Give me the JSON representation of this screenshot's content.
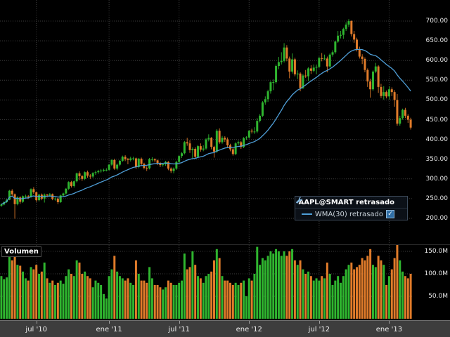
{
  "window": {
    "background": "#000000"
  },
  "legend": {
    "symbol_label": "AAPL@SMART retrasado",
    "wma_label": "WMA(30) retrasado",
    "wma_checked": true
  },
  "volume_panel": {
    "title": "Volumen"
  },
  "chart_data": {
    "type": "candlestick",
    "symbol": "AAPL@SMART retrasado",
    "indicator": "WMA(30) retrasado",
    "wma_period": 30,
    "wma_color": "#4f9fd8",
    "up_color": "#2fb52f",
    "down_color": "#e07b2a",
    "grid_color": "#3c3c3c",
    "price_axis": {
      "min": 200,
      "max": 700,
      "step": 50,
      "values": [
        200,
        250,
        300,
        350,
        400,
        450,
        500,
        550,
        600,
        650,
        700
      ],
      "labels": [
        "200.00",
        "250.00",
        "300.00",
        "350.00",
        "400.00",
        "450.00",
        "500.00",
        "550.00",
        "600.00",
        "650.00",
        "700.00"
      ]
    },
    "volume_axis": {
      "values": [
        50,
        100,
        150
      ],
      "labels": [
        "50.0M",
        "100.0M",
        "150.0M"
      ],
      "unit": "millions of shares"
    },
    "x_ticks": [
      {
        "index": 13,
        "label": "jul '10"
      },
      {
        "index": 40,
        "label": "ene '11"
      },
      {
        "index": 66,
        "label": "jul '11"
      },
      {
        "index": 92,
        "label": "ene '12"
      },
      {
        "index": 118,
        "label": "jul '12"
      },
      {
        "index": 144,
        "label": "ene '13"
      }
    ],
    "bars_format": [
      "open",
      "high",
      "low",
      "close",
      "volume_millions"
    ],
    "bars": [
      [
        232,
        238,
        229,
        235,
        95
      ],
      [
        235,
        243,
        233,
        241,
        88
      ],
      [
        241,
        249,
        239,
        247,
        92
      ],
      [
        247,
        272,
        246,
        270,
        160
      ],
      [
        270,
        274,
        257,
        261,
        130
      ],
      [
        261,
        263,
        199,
        236,
        155
      ],
      [
        236,
        256,
        233,
        253,
        120
      ],
      [
        253,
        256,
        237,
        242,
        118
      ],
      [
        242,
        258,
        239,
        256,
        105
      ],
      [
        256,
        260,
        251,
        256,
        90
      ],
      [
        256,
        259,
        249,
        254,
        85
      ],
      [
        254,
        276,
        252,
        274,
        115
      ],
      [
        274,
        279,
        262,
        266,
        110
      ],
      [
        266,
        268,
        242,
        246,
        120
      ],
      [
        246,
        262,
        243,
        260,
        100
      ],
      [
        260,
        263,
        246,
        250,
        105
      ],
      [
        250,
        263,
        240,
        260,
        125
      ],
      [
        260,
        262,
        253,
        258,
        90
      ],
      [
        258,
        264,
        255,
        261,
        80
      ],
      [
        261,
        263,
        246,
        249,
        85
      ],
      [
        249,
        253,
        245,
        250,
        75
      ],
      [
        250,
        252,
        236,
        241,
        80
      ],
      [
        241,
        260,
        239,
        258,
        85
      ],
      [
        258,
        265,
        254,
        263,
        78
      ],
      [
        263,
        277,
        260,
        275,
        95
      ],
      [
        275,
        294,
        272,
        292,
        110
      ],
      [
        292,
        295,
        278,
        282,
        100
      ],
      [
        282,
        296,
        278,
        294,
        95
      ],
      [
        294,
        316,
        291,
        314,
        130
      ],
      [
        314,
        319,
        297,
        307,
        125
      ],
      [
        307,
        310,
        295,
        300,
        100
      ],
      [
        300,
        319,
        297,
        317,
        105
      ],
      [
        317,
        321,
        303,
        308,
        95
      ],
      [
        308,
        312,
        300,
        306,
        90
      ],
      [
        306,
        317,
        302,
        315,
        70
      ],
      [
        315,
        321,
        310,
        317,
        85
      ],
      [
        317,
        323,
        313,
        320,
        80
      ],
      [
        320,
        325,
        316,
        321,
        75
      ],
      [
        321,
        326,
        318,
        323,
        55
      ],
      [
        323,
        327,
        319,
        323,
        45
      ],
      [
        323,
        338,
        321,
        336,
        95
      ],
      [
        336,
        350,
        333,
        348,
        110
      ],
      [
        348,
        351,
        323,
        326,
        140
      ],
      [
        326,
        339,
        322,
        336,
        105
      ],
      [
        336,
        348,
        332,
        346,
        95
      ],
      [
        346,
        359,
        343,
        356,
        90
      ],
      [
        356,
        360,
        345,
        350,
        85
      ],
      [
        350,
        353,
        337,
        348,
        90
      ],
      [
        348,
        356,
        344,
        352,
        80
      ],
      [
        352,
        356,
        347,
        352,
        75
      ],
      [
        352,
        354,
        325,
        330,
        130
      ],
      [
        330,
        353,
        327,
        351,
        100
      ],
      [
        351,
        354,
        334,
        338,
        85
      ],
      [
        338,
        341,
        324,
        328,
        85
      ],
      [
        328,
        332,
        320,
        327,
        80
      ],
      [
        327,
        353,
        324,
        350,
        115
      ],
      [
        350,
        355,
        344,
        350,
        90
      ],
      [
        350,
        352,
        342,
        347,
        75
      ],
      [
        347,
        349,
        335,
        340,
        75
      ],
      [
        340,
        343,
        330,
        335,
        70
      ],
      [
        335,
        340,
        331,
        337,
        65
      ],
      [
        337,
        346,
        333,
        343,
        70
      ],
      [
        343,
        345,
        322,
        326,
        85
      ],
      [
        326,
        329,
        315,
        320,
        80
      ],
      [
        320,
        329,
        314,
        326,
        75
      ],
      [
        326,
        346,
        323,
        343,
        75
      ],
      [
        343,
        360,
        340,
        358,
        80
      ],
      [
        358,
        368,
        353,
        365,
        85
      ],
      [
        365,
        396,
        362,
        393,
        145
      ],
      [
        393,
        404,
        384,
        390,
        110
      ],
      [
        390,
        398,
        366,
        373,
        115
      ],
      [
        373,
        380,
        353,
        376,
        150
      ],
      [
        376,
        380,
        351,
        356,
        120
      ],
      [
        356,
        386,
        353,
        383,
        95
      ],
      [
        383,
        390,
        369,
        374,
        90
      ],
      [
        374,
        385,
        370,
        377,
        80
      ],
      [
        377,
        403,
        374,
        400,
        95
      ],
      [
        400,
        413,
        395,
        404,
        100
      ],
      [
        404,
        406,
        375,
        381,
        105
      ],
      [
        381,
        384,
        354,
        369,
        130
      ],
      [
        369,
        426,
        366,
        422,
        155
      ],
      [
        422,
        428,
        389,
        393,
        135
      ],
      [
        393,
        409,
        389,
        404,
        95
      ],
      [
        404,
        408,
        394,
        400,
        85
      ],
      [
        400,
        405,
        379,
        385,
        85
      ],
      [
        385,
        389,
        370,
        375,
        80
      ],
      [
        375,
        378,
        359,
        363,
        75
      ],
      [
        363,
        393,
        360,
        390,
        80
      ],
      [
        390,
        397,
        385,
        393,
        75
      ],
      [
        393,
        396,
        376,
        381,
        80
      ],
      [
        381,
        406,
        378,
        403,
        85
      ],
      [
        403,
        408,
        399,
        405,
        50
      ],
      [
        405,
        424,
        402,
        422,
        90
      ],
      [
        422,
        427,
        415,
        420,
        85
      ],
      [
        420,
        431,
        414,
        420,
        100
      ],
      [
        420,
        454,
        416,
        447,
        160
      ],
      [
        447,
        464,
        443,
        460,
        120
      ],
      [
        460,
        497,
        457,
        494,
        135
      ],
      [
        494,
        509,
        488,
        502,
        130
      ],
      [
        502,
        526,
        495,
        522,
        140
      ],
      [
        522,
        548,
        516,
        545,
        150
      ],
      [
        545,
        552,
        525,
        545,
        145
      ],
      [
        545,
        590,
        541,
        586,
        155
      ],
      [
        586,
        609,
        578,
        596,
        150
      ],
      [
        596,
        621,
        590,
        599,
        140
      ],
      [
        599,
        644,
        595,
        633,
        150
      ],
      [
        633,
        639,
        598,
        605,
        140
      ],
      [
        605,
        610,
        555,
        572,
        150
      ],
      [
        572,
        618,
        567,
        603,
        155
      ],
      [
        603,
        607,
        560,
        565,
        130
      ],
      [
        565,
        575,
        553,
        567,
        120
      ],
      [
        567,
        570,
        522,
        530,
        130
      ],
      [
        530,
        566,
        528,
        562,
        110
      ],
      [
        562,
        576,
        556,
        560,
        100
      ],
      [
        560,
        583,
        548,
        580,
        105
      ],
      [
        580,
        588,
        566,
        574,
        95
      ],
      [
        574,
        590,
        570,
        582,
        85
      ],
      [
        582,
        590,
        565,
        584,
        90
      ],
      [
        584,
        610,
        580,
        606,
        85
      ],
      [
        606,
        619,
        598,
        605,
        95
      ],
      [
        605,
        615,
        601,
        605,
        90
      ],
      [
        605,
        610,
        570,
        585,
        125
      ],
      [
        585,
        618,
        582,
        615,
        100
      ],
      [
        615,
        626,
        610,
        621,
        75
      ],
      [
        621,
        650,
        617,
        648,
        85
      ],
      [
        648,
        675,
        645,
        663,
        95
      ],
      [
        663,
        675,
        656,
        665,
        80
      ],
      [
        665,
        683,
        655,
        680,
        95
      ],
      [
        680,
        697,
        675,
        691,
        110
      ],
      [
        691,
        705,
        685,
        700,
        120
      ],
      [
        700,
        702,
        661,
        667,
        125
      ],
      [
        667,
        675,
        645,
        653,
        110
      ],
      [
        653,
        658,
        623,
        629,
        115
      ],
      [
        629,
        635,
        605,
        610,
        120
      ],
      [
        610,
        616,
        591,
        604,
        135
      ],
      [
        604,
        608,
        570,
        576,
        130
      ],
      [
        576,
        580,
        533,
        547,
        140
      ],
      [
        547,
        554,
        506,
        527,
        155
      ],
      [
        527,
        575,
        523,
        572,
        120
      ],
      [
        572,
        594,
        568,
        585,
        115
      ],
      [
        585,
        588,
        518,
        533,
        140
      ],
      [
        533,
        541,
        505,
        510,
        130
      ],
      [
        510,
        535,
        501,
        520,
        120
      ],
      [
        520,
        524,
        504,
        509,
        75
      ],
      [
        509,
        535,
        501,
        527,
        95
      ],
      [
        527,
        532,
        510,
        520,
        110
      ],
      [
        520,
        525,
        483,
        500,
        135
      ],
      [
        500,
        515,
        435,
        440,
        165
      ],
      [
        440,
        460,
        435,
        454,
        130
      ],
      [
        454,
        478,
        450,
        475,
        105
      ],
      [
        475,
        480,
        454,
        460,
        95
      ],
      [
        460,
        464,
        442,
        450,
        90
      ],
      [
        450,
        455,
        425,
        430,
        100
      ]
    ]
  }
}
